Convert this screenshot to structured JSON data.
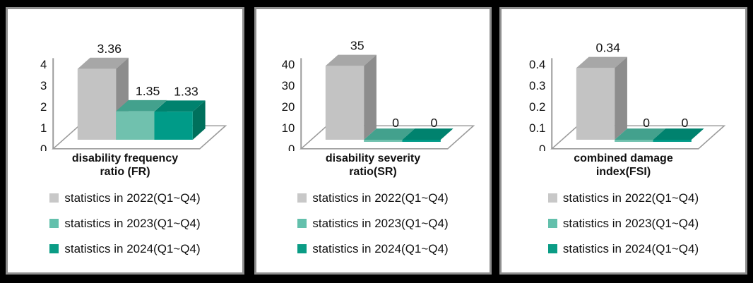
{
  "colors": {
    "background": "#000000",
    "panel_bg": "#ffffff",
    "panel_border": "#8f8f8f",
    "axis_line": "#9b9b9b",
    "text": "#141414",
    "series": [
      {
        "name": "2022",
        "front": "#c3c3c3",
        "top": "#a7a7a7",
        "side": "#8d8d8d",
        "swatch": "#c8c8c8"
      },
      {
        "name": "2023",
        "front": "#70c1ae",
        "top": "#43a18d",
        "side": "#4f9f8d",
        "swatch": "#63c0ac"
      },
      {
        "name": "2024",
        "front": "#009b88",
        "top": "#00826e",
        "side": "#00705c",
        "swatch": "#0a9c85"
      }
    ]
  },
  "legend": {
    "items": [
      {
        "label": "statistics in 2022(Q1~Q4)"
      },
      {
        "label": "statistics in 2023(Q1~Q4)"
      },
      {
        "label": "statistics in 2024(Q1~Q4)"
      }
    ]
  },
  "chart_data": [
    {
      "type": "bar",
      "style": "3d",
      "title": "disability frequency ratio (FR)",
      "title_lines": [
        "disability frequency",
        "ratio (FR)"
      ],
      "categories": [
        "statistics in 2022(Q1~Q4)",
        "statistics in 2023(Q1~Q4)",
        "statistics in 2024(Q1~Q4)"
      ],
      "values": [
        3.36,
        1.35,
        1.33
      ],
      "value_labels": [
        "3.36",
        "1.35",
        "1.33"
      ],
      "y_ticks": [
        "0",
        "1",
        "2",
        "3",
        "4"
      ],
      "ylim": [
        0,
        4
      ],
      "grid": false,
      "legend_position": "bottom"
    },
    {
      "type": "bar",
      "style": "3d",
      "title": "disability severity ratio(SR)",
      "title_lines": [
        "disability severity",
        "ratio(SR)"
      ],
      "categories": [
        "statistics in 2022(Q1~Q4)",
        "statistics in 2023(Q1~Q4)",
        "statistics in 2024(Q1~Q4)"
      ],
      "values": [
        35,
        0,
        0
      ],
      "value_labels": [
        "35",
        "0",
        "0"
      ],
      "y_ticks": [
        "0",
        "10",
        "20",
        "30",
        "40"
      ],
      "ylim": [
        0,
        40
      ],
      "grid": false,
      "legend_position": "bottom"
    },
    {
      "type": "bar",
      "style": "3d",
      "title": "combined damage index(FSI)",
      "title_lines": [
        "combined damage",
        "index(FSI)"
      ],
      "categories": [
        "statistics in 2022(Q1~Q4)",
        "statistics in 2023(Q1~Q4)",
        "statistics in 2024(Q1~Q4)"
      ],
      "values": [
        0.34,
        0,
        0
      ],
      "value_labels": [
        "0.34",
        "0",
        "0"
      ],
      "y_ticks": [
        "0",
        "0.1",
        "0.2",
        "0.3",
        "0.4"
      ],
      "ylim": [
        0,
        0.4
      ],
      "grid": false,
      "legend_position": "bottom"
    }
  ]
}
